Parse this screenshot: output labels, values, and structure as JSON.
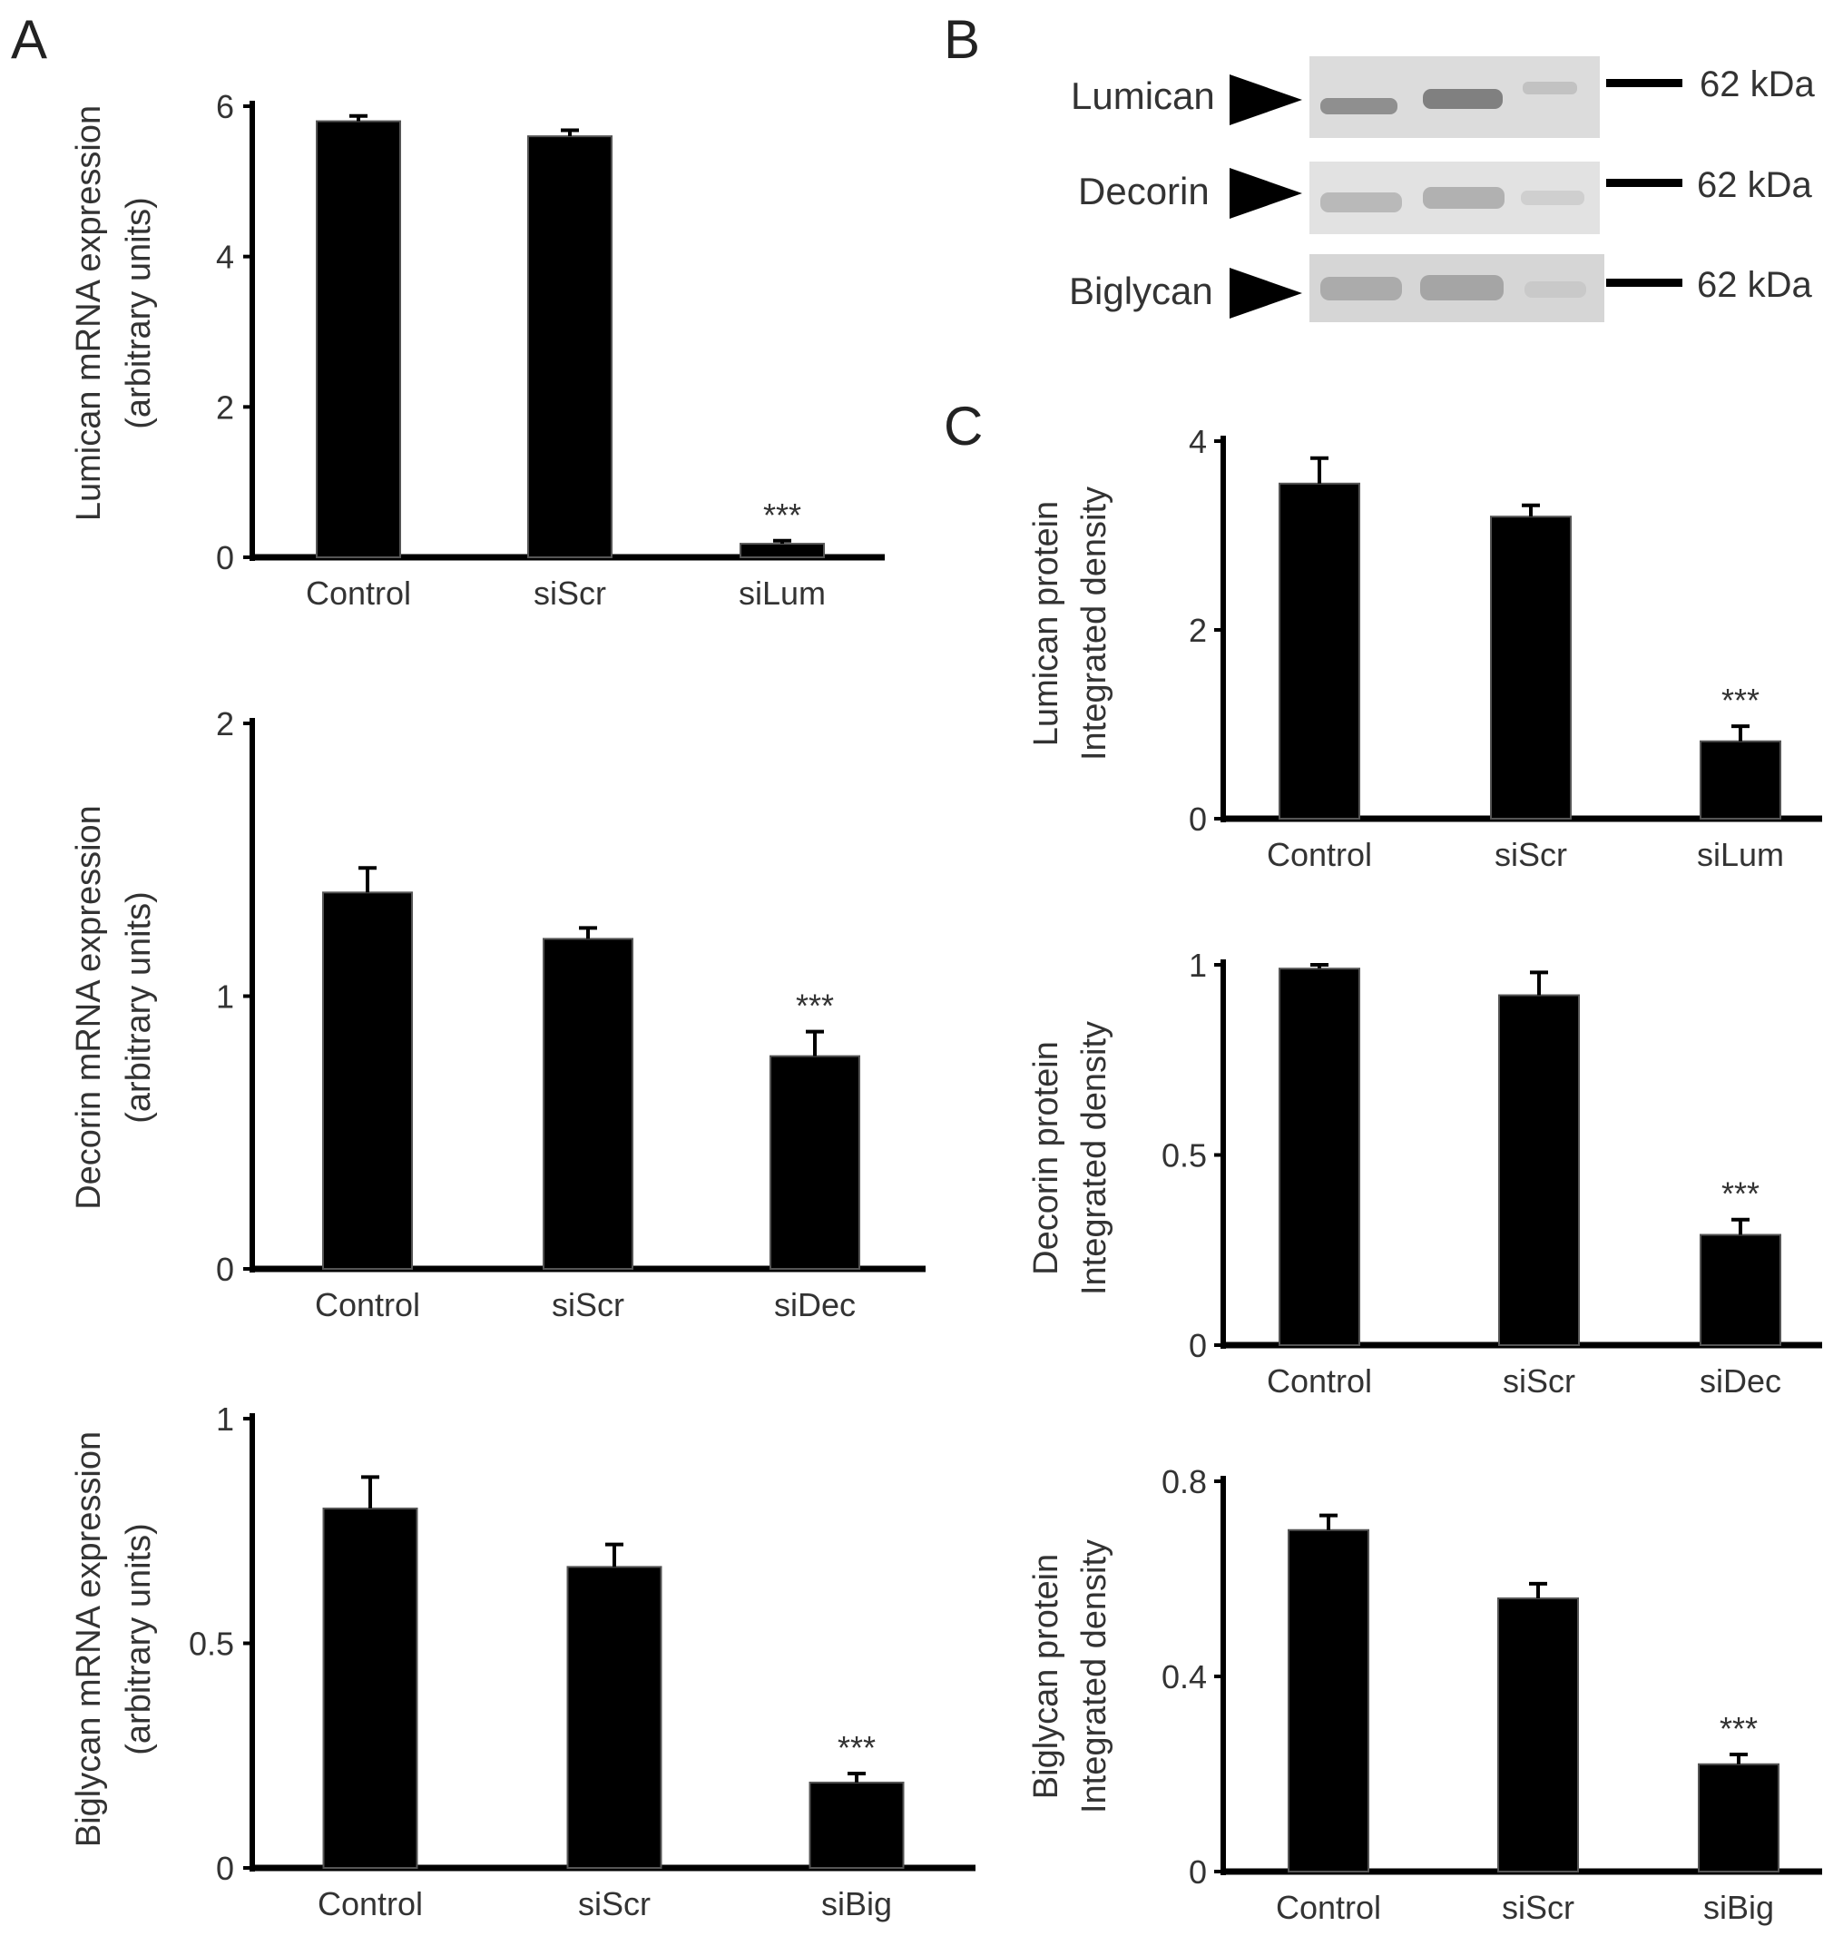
{
  "panels": {
    "A": "A",
    "B": "B",
    "C": "C"
  },
  "blot": {
    "rows": [
      {
        "protein": "Lumican",
        "marker": "62 kDa"
      },
      {
        "protein": "Decorin",
        "marker": "62 kDa"
      },
      {
        "protein": "Biglycan",
        "marker": "62 kDa"
      }
    ]
  },
  "chart_data": [
    {
      "id": "A1",
      "type": "bar",
      "categories": [
        "Control",
        "siScr",
        "siLum"
      ],
      "values": [
        5.8,
        5.6,
        0.18
      ],
      "errors": [
        0.07,
        0.08,
        0.04
      ],
      "significance": [
        "",
        "",
        "***"
      ],
      "ylabel": [
        "Lumican mRNA expression",
        "(arbitrary units)"
      ],
      "ylim": [
        0,
        6
      ],
      "yticks": [
        0,
        2,
        4,
        6
      ],
      "ytick_labels": [
        "0",
        "2",
        "4",
        "6"
      ]
    },
    {
      "id": "A2",
      "type": "bar",
      "categories": [
        "Control",
        "siScr",
        "siDec"
      ],
      "values": [
        1.38,
        1.21,
        0.78
      ],
      "errors": [
        0.09,
        0.04,
        0.09
      ],
      "significance": [
        "",
        "",
        "***"
      ],
      "ylabel": [
        "Decorin mRNA expression",
        "(arbitrary units)"
      ],
      "ylim": [
        0,
        2
      ],
      "yticks": [
        0,
        1,
        2
      ],
      "ytick_labels": [
        "0",
        "1",
        "2"
      ]
    },
    {
      "id": "A3",
      "type": "bar",
      "categories": [
        "Control",
        "siScr",
        "siBig"
      ],
      "values": [
        0.8,
        0.67,
        0.19
      ],
      "errors": [
        0.07,
        0.05,
        0.02
      ],
      "significance": [
        "",
        "",
        "***"
      ],
      "ylabel": [
        "Biglycan mRNA expression",
        "(arbitrary units)"
      ],
      "ylim": [
        0,
        1
      ],
      "yticks": [
        0,
        0.5,
        1
      ],
      "ytick_labels": [
        "0",
        "0.5",
        "1"
      ]
    },
    {
      "id": "C1",
      "type": "bar",
      "categories": [
        "Control",
        "siScr",
        "siLum"
      ],
      "values": [
        3.55,
        3.2,
        0.82
      ],
      "errors": [
        0.27,
        0.12,
        0.16
      ],
      "significance": [
        "",
        "",
        "***"
      ],
      "ylabel": [
        "Lumican protein",
        "Integrated density"
      ],
      "ylim": [
        0,
        4
      ],
      "yticks": [
        0,
        2,
        4
      ],
      "ytick_labels": [
        "0",
        "2",
        "4"
      ]
    },
    {
      "id": "C2",
      "type": "bar",
      "categories": [
        "Control",
        "siScr",
        "siDec"
      ],
      "values": [
        0.99,
        0.92,
        0.29
      ],
      "errors": [
        0.01,
        0.06,
        0.04
      ],
      "significance": [
        "",
        "",
        "***"
      ],
      "ylabel": [
        "Decorin protein",
        "Integrated density"
      ],
      "ylim": [
        0,
        1
      ],
      "yticks": [
        0,
        0.5,
        1
      ],
      "ytick_labels": [
        "0",
        "0.5",
        "1"
      ]
    },
    {
      "id": "C3",
      "type": "bar",
      "categories": [
        "Control",
        "siScr",
        "siBig"
      ],
      "values": [
        0.7,
        0.56,
        0.22
      ],
      "errors": [
        0.03,
        0.03,
        0.02
      ],
      "significance": [
        "",
        "",
        "***"
      ],
      "ylabel": [
        "Biglycan protein",
        "Integrated density"
      ],
      "ylim": [
        0,
        0.8
      ],
      "yticks": [
        0,
        0.4,
        0.8
      ],
      "ytick_labels": [
        "0",
        "0.4",
        "0.8"
      ]
    }
  ]
}
